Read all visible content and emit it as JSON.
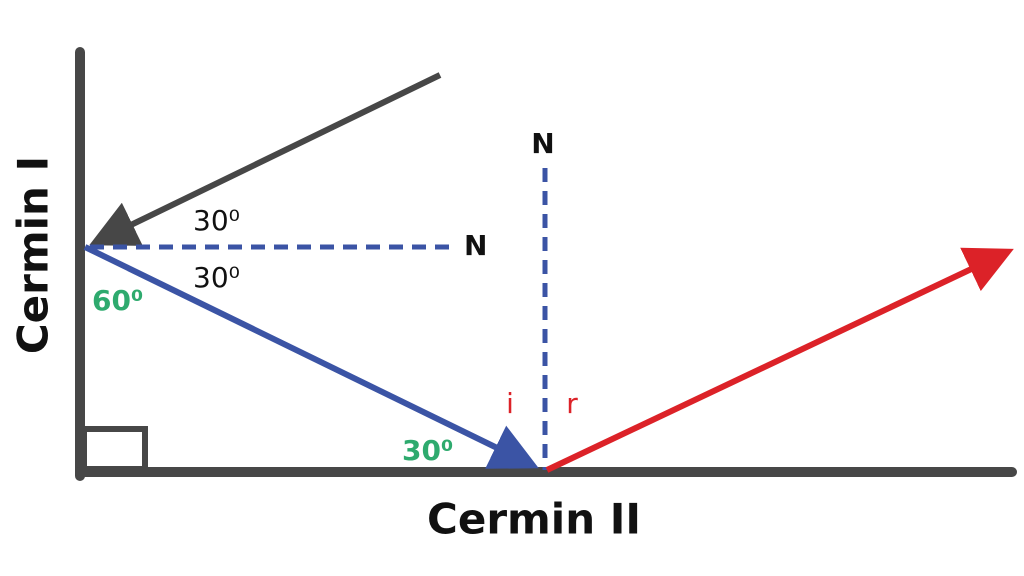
{
  "mirrors": {
    "first": "Cermin I",
    "second": "Cermin II"
  },
  "normals": {
    "first": "N",
    "second": "N"
  },
  "angles": {
    "incident_above": "30⁰",
    "reflected_below": "30⁰",
    "to_mirror_one": "60⁰",
    "to_mirror_two": "30⁰"
  },
  "ray_labels": {
    "incident": "i",
    "reflected": "r"
  }
}
